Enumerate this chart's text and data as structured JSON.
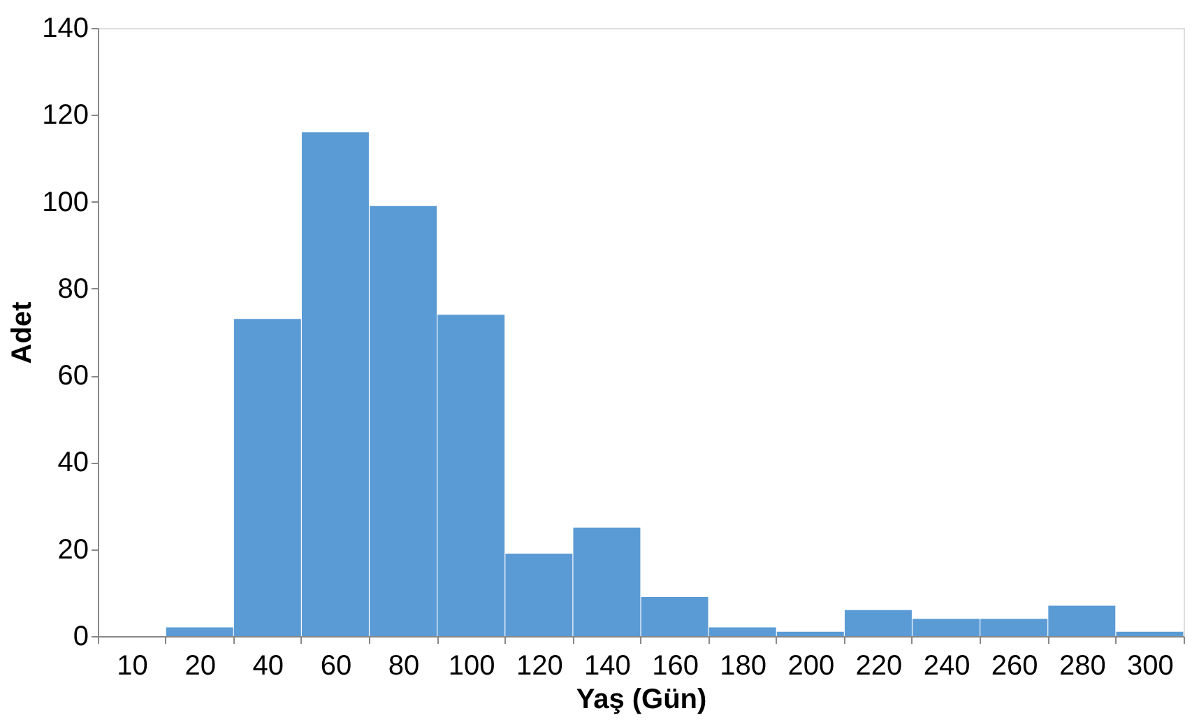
{
  "chart_data": {
    "type": "bar",
    "xlabel": "Yaş (Gün)",
    "ylabel": "Adet",
    "categories": [
      "10",
      "20",
      "40",
      "60",
      "80",
      "100",
      "120",
      "140",
      "160",
      "180",
      "200",
      "220",
      "240",
      "260",
      "280",
      "300"
    ],
    "values": [
      0,
      2,
      73,
      116,
      99,
      74,
      19,
      25,
      9,
      2,
      1,
      6,
      4,
      4,
      7,
      1
    ],
    "color": "#5b9bd5",
    "ylim": [
      0,
      140
    ],
    "yticks": [
      0,
      20,
      40,
      60,
      80,
      100,
      120,
      140
    ],
    "grid": false
  }
}
